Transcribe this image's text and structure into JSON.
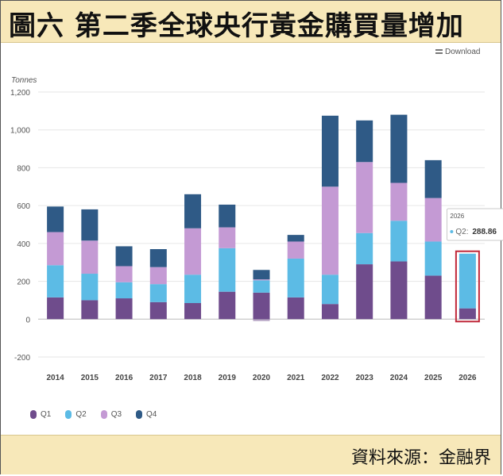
{
  "header": {
    "title": "圖六  第二季全球央行黃金購買量增加"
  },
  "download_label": "Download",
  "source": {
    "text": "資料來源：金融界"
  },
  "chart_data": {
    "type": "bar",
    "stacked": true,
    "ylabel": "Tonnes",
    "ylim": [
      -200,
      1200
    ],
    "yticks": [
      -200,
      0,
      200,
      400,
      600,
      800,
      1000,
      1200
    ],
    "ytick_labels": [
      "-200",
      "0",
      "200",
      "400",
      "600",
      "800",
      "1,000",
      "1,200"
    ],
    "grid": true,
    "legend_position": "bottom-left",
    "categories": [
      "2014",
      "2015",
      "2016",
      "2017",
      "2018",
      "2019",
      "2020",
      "2021",
      "2022",
      "2023",
      "2024",
      "2025",
      "2026"
    ],
    "series": [
      {
        "name": "Q1",
        "color": "#6f4c8c",
        "values": [
          115,
          100,
          110,
          90,
          85,
          145,
          140,
          115,
          80,
          290,
          305,
          230,
          57
        ]
      },
      {
        "name": "Q2",
        "color": "#5cbbe5",
        "values": [
          170,
          140,
          85,
          95,
          150,
          230,
          65,
          205,
          155,
          165,
          215,
          180,
          289
        ]
      },
      {
        "name": "Q3",
        "color": "#c49ad4",
        "values": [
          175,
          175,
          85,
          90,
          245,
          110,
          5,
          90,
          465,
          375,
          200,
          230,
          0
        ]
      },
      {
        "name": "Q4",
        "color": "#2f5a86",
        "values": [
          135,
          165,
          105,
          95,
          180,
          120,
          50,
          35,
          375,
          220,
          360,
          200,
          0
        ]
      }
    ],
    "negative_adjustments": {
      "series": "Q1",
      "category": "2020",
      "value": -10
    },
    "tooltip": {
      "category": "2026",
      "year_label": "2026",
      "series_label": "Q2",
      "value": "288.86"
    },
    "highlight": {
      "category": "2026",
      "color": "#c0283a"
    }
  }
}
